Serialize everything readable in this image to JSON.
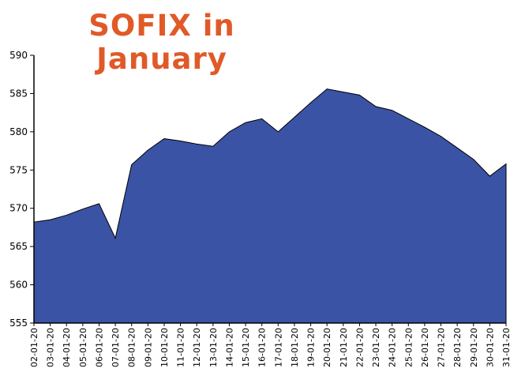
{
  "chart_data": {
    "type": "area",
    "title": "SOFIX in January",
    "categories": [
      "02-01-20",
      "03-01-20",
      "04-01-20",
      "05-01-20",
      "06-01-20",
      "07-01-20",
      "08-01-20",
      "09-01-20",
      "10-01-20",
      "11-01-20",
      "12-01-20",
      "13-01-20",
      "14-01-20",
      "15-01-20",
      "16-01-20",
      "17-01-20",
      "18-01-20",
      "19-01-20",
      "20-01-20",
      "21-01-20",
      "22-01-20",
      "23-01-20",
      "24-01-20",
      "25-01-20",
      "26-01-20",
      "27-01-20",
      "28-01-20",
      "29-01-20",
      "30-01-20",
      "31-01-20"
    ],
    "values": [
      568.2,
      568.5,
      569.1,
      569.9,
      570.6,
      566.1,
      575.7,
      577.6,
      579.1,
      578.8,
      578.4,
      578.1,
      580.0,
      581.2,
      581.7,
      580.0,
      581.9,
      583.8,
      585.6,
      585.2,
      584.8,
      583.3,
      582.8,
      581.7,
      580.6,
      579.4,
      577.9,
      576.4,
      574.2,
      575.8
    ],
    "color": "#3a53a4",
    "ylim": [
      555,
      590
    ],
    "yticks": [
      555,
      560,
      565,
      570,
      575,
      580,
      585,
      590
    ],
    "grid": false
  }
}
